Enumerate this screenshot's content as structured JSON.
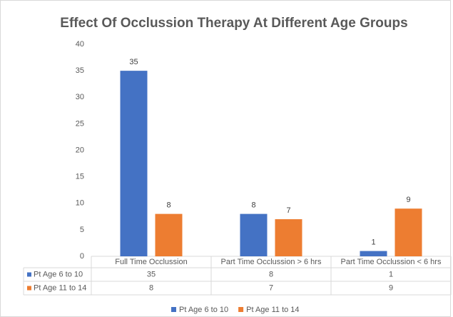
{
  "chart_data": {
    "type": "bar",
    "title": "Effect Of Occlussion  Therapy At Different Age Groups",
    "categories": [
      "Full Time Occlussion",
      "Part Time Occlussion > 6 hrs",
      "Part Time Occlussion <  6 hrs"
    ],
    "series": [
      {
        "name": "Pt Age 6 to 10",
        "color": "#4472c4",
        "values": [
          35,
          8,
          1
        ]
      },
      {
        "name": "Pt Age 11 to 14",
        "color": "#ed7d31",
        "values": [
          8,
          7,
          9
        ]
      }
    ],
    "ylim": [
      0,
      40
    ],
    "yticks": [
      0,
      5,
      10,
      15,
      20,
      25,
      30,
      35,
      40
    ],
    "grid": false
  }
}
